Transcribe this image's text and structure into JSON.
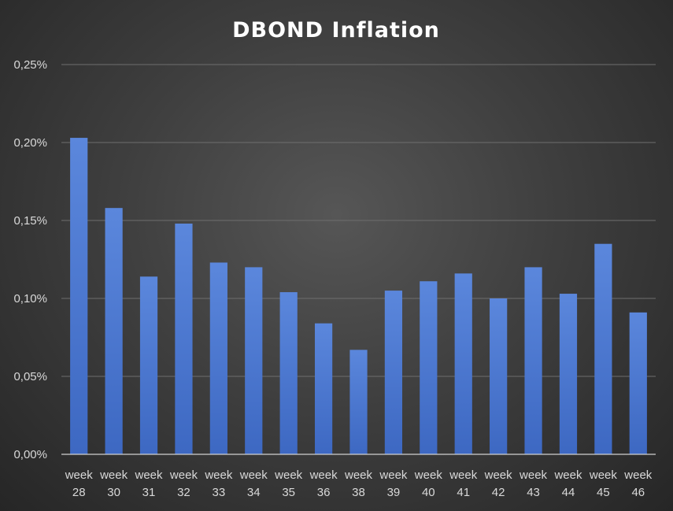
{
  "chart_data": {
    "type": "bar",
    "title": "DBOND Inflation",
    "xlabel": "",
    "ylabel": "",
    "ylim": [
      0,
      0.25
    ],
    "yticks": [
      "0,00%",
      "0,05%",
      "0,10%",
      "0,15%",
      "0,20%",
      "0,25%"
    ],
    "category_prefix": "week",
    "categories": [
      "28",
      "30",
      "31",
      "32",
      "33",
      "34",
      "35",
      "36",
      "38",
      "39",
      "40",
      "41",
      "42",
      "43",
      "44",
      "45",
      "46"
    ],
    "values": [
      0.203,
      0.158,
      0.114,
      0.148,
      0.123,
      0.12,
      0.104,
      0.084,
      0.067,
      0.105,
      0.111,
      0.116,
      0.1,
      0.12,
      0.103,
      0.135,
      0.091
    ],
    "unit": "%",
    "grid": true,
    "legend": "none",
    "bar_color": "#4a78d0"
  }
}
